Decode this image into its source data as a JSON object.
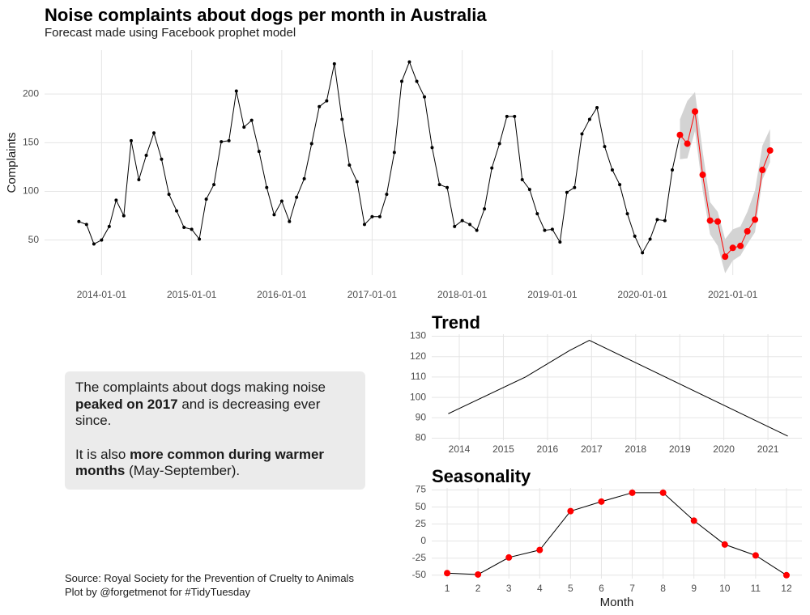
{
  "chart_data": [
    {
      "type": "line",
      "title": "Noise complaints about dogs per month in Australia",
      "subtitle": "Forecast made using Facebook prophet model",
      "y_label": "Complaints",
      "x": [
        "2013-10-01",
        "2013-11-01",
        "2013-12-01",
        "2014-01-01",
        "2014-02-01",
        "2014-03-01",
        "2014-04-01",
        "2014-05-01",
        "2014-06-01",
        "2014-07-01",
        "2014-08-01",
        "2014-09-01",
        "2014-10-01",
        "2014-11-01",
        "2014-12-01",
        "2015-01-01",
        "2015-02-01",
        "2015-03-01",
        "2015-04-01",
        "2015-05-01",
        "2015-06-01",
        "2015-07-01",
        "2015-08-01",
        "2015-09-01",
        "2015-10-01",
        "2015-11-01",
        "2015-12-01",
        "2016-01-01",
        "2016-02-01",
        "2016-03-01",
        "2016-04-01",
        "2016-05-01",
        "2016-06-01",
        "2016-07-01",
        "2016-08-01",
        "2016-09-01",
        "2016-10-01",
        "2016-11-01",
        "2016-12-01",
        "2017-01-01",
        "2017-02-01",
        "2017-03-01",
        "2017-04-01",
        "2017-05-01",
        "2017-06-01",
        "2017-07-01",
        "2017-08-01",
        "2017-09-01",
        "2017-10-01",
        "2017-11-01",
        "2017-12-01",
        "2018-01-01",
        "2018-02-01",
        "2018-03-01",
        "2018-04-01",
        "2018-05-01",
        "2018-06-01",
        "2018-07-01",
        "2018-08-01",
        "2018-09-01",
        "2018-10-01",
        "2018-11-01",
        "2018-12-01",
        "2019-01-01",
        "2019-02-01",
        "2019-03-01",
        "2019-04-01",
        "2019-05-01",
        "2019-06-01",
        "2019-07-01",
        "2019-08-01",
        "2019-09-01",
        "2019-10-01",
        "2019-11-01",
        "2019-12-01",
        "2020-01-01",
        "2020-02-01",
        "2020-03-01",
        "2020-04-01",
        "2020-05-01",
        "2020-06-01",
        "2020-07-01",
        "2020-08-01",
        "2020-09-01",
        "2020-10-01",
        "2020-11-01",
        "2020-12-01",
        "2021-01-01",
        "2021-02-01",
        "2021-03-01",
        "2021-04-01",
        "2021-05-01",
        "2021-06-01"
      ],
      "series": [
        {
          "color": "#000000",
          "marker_color": "#000000",
          "marker_size": 2,
          "values": [
            69,
            66,
            46,
            50,
            64,
            91,
            75,
            152,
            112,
            137,
            160,
            133,
            97,
            80,
            63,
            61,
            51,
            92,
            107,
            151,
            152,
            203,
            166,
            173,
            141,
            104,
            76,
            90,
            69,
            94,
            113,
            149,
            187,
            193,
            231,
            174,
            127,
            110,
            66,
            74,
            74,
            97,
            140,
            213,
            233,
            213,
            197,
            145,
            107,
            104,
            64,
            70,
            66,
            60,
            82,
            124,
            149,
            177,
            177,
            112,
            102,
            77,
            60,
            61,
            48,
            99,
            104,
            159,
            174,
            186,
            146,
            122,
            107,
            77,
            54,
            37,
            51,
            71,
            70,
            122,
            158,
            null,
            null,
            null,
            null,
            null,
            null,
            null,
            null,
            null,
            null,
            null,
            null
          ]
        },
        {
          "color": "#ff0000",
          "marker_color": "#ff0000",
          "marker_size": 4,
          "values": [
            null,
            null,
            null,
            null,
            null,
            null,
            null,
            null,
            null,
            null,
            null,
            null,
            null,
            null,
            null,
            null,
            null,
            null,
            null,
            null,
            null,
            null,
            null,
            null,
            null,
            null,
            null,
            null,
            null,
            null,
            null,
            null,
            null,
            null,
            null,
            null,
            null,
            null,
            null,
            null,
            null,
            null,
            null,
            null,
            null,
            null,
            null,
            null,
            null,
            null,
            null,
            null,
            null,
            null,
            null,
            null,
            null,
            null,
            null,
            null,
            null,
            null,
            null,
            null,
            null,
            null,
            null,
            null,
            null,
            null,
            null,
            null,
            null,
            null,
            null,
            null,
            null,
            null,
            null,
            null,
            158,
            149,
            182,
            117,
            70,
            69,
            33,
            42,
            44,
            59,
            71,
            122,
            142
          ]
        }
      ],
      "band": {
        "color": "#d3d3d3",
        "lower": [
          null,
          null,
          null,
          null,
          null,
          null,
          null,
          null,
          null,
          null,
          null,
          null,
          null,
          null,
          null,
          null,
          null,
          null,
          null,
          null,
          null,
          null,
          null,
          null,
          null,
          null,
          null,
          null,
          null,
          null,
          null,
          null,
          null,
          null,
          null,
          null,
          null,
          null,
          null,
          null,
          null,
          null,
          null,
          null,
          null,
          null,
          null,
          null,
          null,
          null,
          null,
          null,
          null,
          null,
          null,
          null,
          null,
          null,
          null,
          null,
          null,
          null,
          null,
          null,
          null,
          null,
          null,
          null,
          null,
          null,
          null,
          null,
          null,
          null,
          null,
          null,
          null,
          null,
          null,
          null,
          133,
          134,
          162,
          101,
          56,
          44,
          16,
          29,
          34,
          46,
          58,
          112,
          130
        ],
        "upper": [
          null,
          null,
          null,
          null,
          null,
          null,
          null,
          null,
          null,
          null,
          null,
          null,
          null,
          null,
          null,
          null,
          null,
          null,
          null,
          null,
          null,
          null,
          null,
          null,
          null,
          null,
          null,
          null,
          null,
          null,
          null,
          null,
          null,
          null,
          null,
          null,
          null,
          null,
          null,
          null,
          null,
          null,
          null,
          null,
          null,
          null,
          null,
          null,
          null,
          null,
          null,
          null,
          null,
          null,
          null,
          null,
          null,
          null,
          null,
          null,
          null,
          null,
          null,
          null,
          null,
          null,
          null,
          null,
          null,
          null,
          null,
          null,
          null,
          null,
          null,
          null,
          null,
          null,
          null,
          null,
          174,
          193,
          202,
          141,
          89,
          79,
          51,
          61,
          64,
          79,
          101,
          147,
          164
        ]
      },
      "xlim": [
        "2013-05-15",
        "2021-10-08"
      ],
      "ylim": [
        14,
        245
      ],
      "xticks": [
        "2014-01-01",
        "2015-01-01",
        "2016-01-01",
        "2017-01-01",
        "2018-01-01",
        "2019-01-01",
        "2020-01-01",
        "2021-01-01"
      ],
      "yticks": [
        50,
        100,
        150,
        200
      ],
      "grid": true
    },
    {
      "type": "line",
      "title": "Trend",
      "x": [
        2013.75,
        2015.5,
        2016.5,
        2016.95,
        2021.45
      ],
      "series": [
        {
          "color": "#000000",
          "values": [
            92,
            110,
            123,
            128,
            81
          ]
        }
      ],
      "xlim": [
        2013.375,
        2021.77
      ],
      "ylim": [
        79,
        131
      ],
      "xticks": [
        2014,
        2015,
        2016,
        2017,
        2018,
        2019,
        2020,
        2021
      ],
      "yticks": [
        80,
        90,
        100,
        110,
        120,
        130
      ],
      "grid": true
    },
    {
      "type": "line",
      "title": "Seasonality",
      "x_label": "Month",
      "x": [
        1,
        2,
        3,
        4,
        5,
        6,
        7,
        8,
        9,
        10,
        11,
        12
      ],
      "series": [
        {
          "color": "#000000",
          "marker_color": "#ff0000",
          "marker_size": 4,
          "values": [
            -47,
            -49,
            -24,
            -13,
            44,
            58,
            71,
            71,
            30,
            -5,
            -21,
            -50
          ]
        }
      ],
      "xlim": [
        0.5,
        12.5
      ],
      "ylim": [
        -55,
        78
      ],
      "xticks": [
        1,
        2,
        3,
        4,
        5,
        6,
        7,
        8,
        9,
        10,
        11,
        12
      ],
      "yticks": [
        -50,
        -25,
        0,
        25,
        50,
        75
      ],
      "grid": true
    }
  ],
  "note": {
    "paragraphs": [
      [
        {
          "text": "The complaints about dogs making noise "
        },
        {
          "text": "peaked on 2017",
          "bold": true
        },
        {
          "text": " and is decreasing ever since."
        }
      ],
      [
        {
          "text": "It is also "
        },
        {
          "text": "more common during warmer months",
          "bold": true
        },
        {
          "text": " (May-September)."
        }
      ]
    ]
  },
  "caption": [
    "Source: Royal Society for the Prevention of Cruelty to Animals",
    "Plot by @forgetmenot for #TidyTuesday"
  ]
}
